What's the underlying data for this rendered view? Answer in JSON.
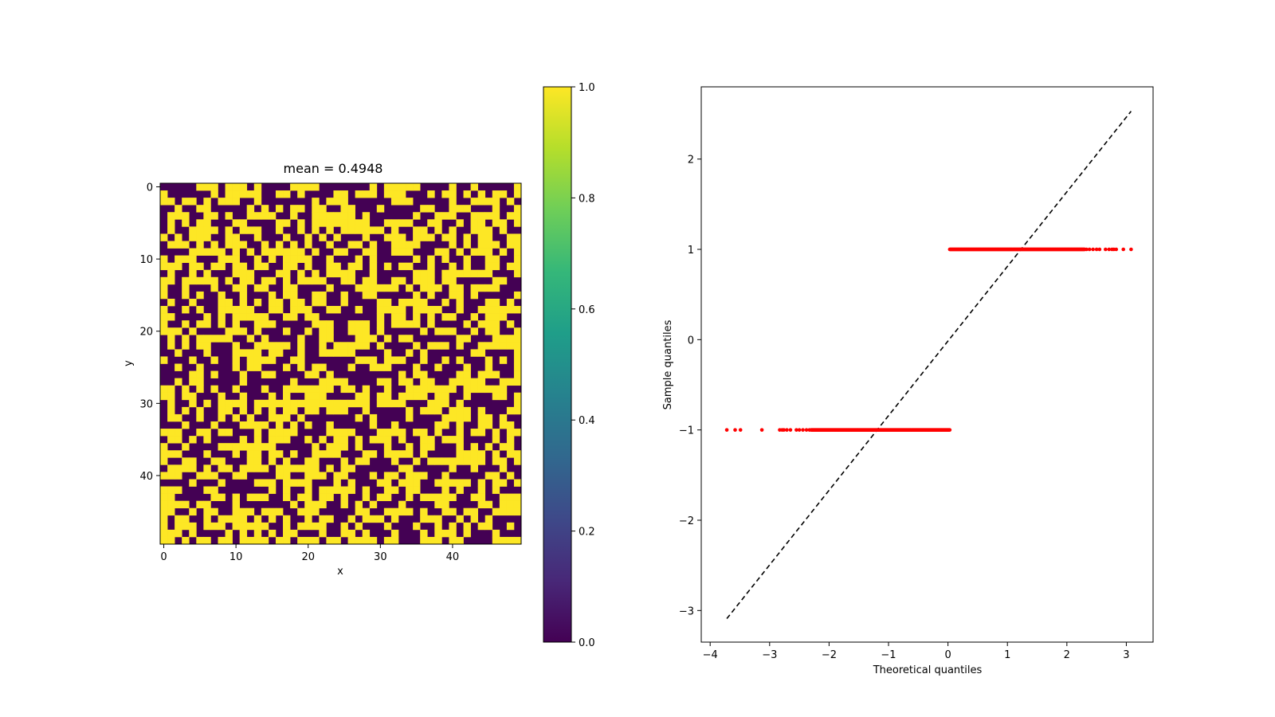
{
  "figure": {
    "background": "#ffffff"
  },
  "chart_data": [
    {
      "type": "heatmap",
      "title": "mean = 0.4948",
      "xlabel": "x",
      "ylabel": "y",
      "grid": false,
      "rows": 50,
      "cols": 50,
      "mean": 0.4948,
      "values_description": "binary values (0 or 1) on a 50x50 grid, sampled pixel-by-pixel",
      "value_levels": [
        0,
        1
      ],
      "xticks": [
        0,
        10,
        20,
        30,
        40
      ],
      "yticks": [
        0,
        10,
        20,
        30,
        40
      ],
      "xtick_labels": [
        "0",
        "10",
        "20",
        "30",
        "40"
      ],
      "ytick_labels": [
        "0",
        "10",
        "20",
        "30",
        "40"
      ],
      "colormap": "viridis",
      "color_low": "#440154",
      "color_high": "#fde725",
      "colorbar": {
        "range": [
          0.0,
          1.0
        ],
        "ticks": [
          0.0,
          0.2,
          0.4,
          0.6,
          0.8,
          1.0
        ],
        "tick_labels": [
          "0.0",
          "0.2",
          "0.4",
          "0.6",
          "0.8",
          "1.0"
        ],
        "stops": [
          "#440154",
          "#482878",
          "#3e4989",
          "#31688e",
          "#26828e",
          "#1f9e89",
          "#35b779",
          "#6ece58",
          "#b5de2b",
          "#fde725"
        ]
      }
    },
    {
      "type": "scatter",
      "title": "",
      "xlabel": "Theoretical quantiles",
      "ylabel": "Sample quantiles",
      "xlim": [
        -4.15,
        3.45
      ],
      "ylim": [
        -3.35,
        2.8
      ],
      "xticks": [
        -4,
        -3,
        -2,
        -1,
        0,
        1,
        2,
        3
      ],
      "yticks": [
        -3,
        -2,
        -1,
        0,
        1,
        2
      ],
      "xtick_labels": [
        "−4",
        "−3",
        "−2",
        "−1",
        "0",
        "1",
        "2",
        "3"
      ],
      "ytick_labels": [
        "−3",
        "−2",
        "−1",
        "0",
        "1",
        "2"
      ],
      "grid": false,
      "point_color": "#ff0000",
      "line_color": "#000000",
      "reference_line": {
        "style": "dashed",
        "x": [
          -3.72,
          3.08
        ],
        "y": [
          -3.09,
          2.53
        ]
      },
      "series": [
        {
          "y": -1,
          "x_min": -3.72,
          "x_max": 0.03,
          "isolated_x": [
            -3.72,
            -3.58,
            -3.49,
            -3.13,
            -2.83,
            -2.79,
            -2.76,
            -2.71,
            -2.65,
            -2.55,
            -2.5,
            -2.44,
            -2.38,
            -2.33
          ]
        },
        {
          "y": 1,
          "x_min": 0.03,
          "x_max": 3.08,
          "isolated_x": [
            2.33,
            2.38,
            2.44,
            2.5,
            2.55,
            2.65,
            2.71,
            2.76,
            2.79,
            2.83,
            2.95,
            3.08
          ]
        }
      ]
    }
  ]
}
